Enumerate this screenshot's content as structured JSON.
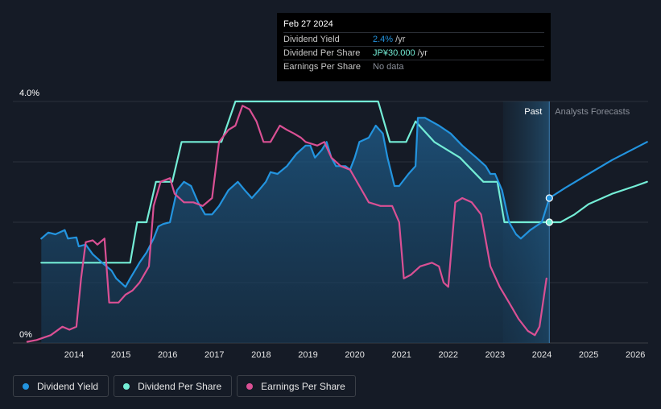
{
  "chart_data": {
    "type": "line",
    "y_axis": {
      "min": 0,
      "max": 4.0,
      "tick_labels": [
        "0%",
        "4.0%"
      ]
    },
    "x_axis": {
      "min": 2013.0,
      "max": 2026.25,
      "ticks": [
        2014,
        2015,
        2016,
        2017,
        2018,
        2019,
        2020,
        2021,
        2022,
        2023,
        2024,
        2025,
        2026
      ]
    },
    "region_labels": {
      "past": "Past",
      "forecast": "Analysts Forecasts"
    },
    "past_region": {
      "start": 2023.17,
      "end": 2024.16
    },
    "series": [
      {
        "name": "Dividend Yield",
        "color": "#2394df",
        "area": true,
        "points": [
          [
            2013.3,
            1.73
          ],
          [
            2013.45,
            1.83
          ],
          [
            2013.6,
            1.8
          ],
          [
            2013.8,
            1.87
          ],
          [
            2013.87,
            1.73
          ],
          [
            2014.05,
            1.75
          ],
          [
            2014.1,
            1.6
          ],
          [
            2014.25,
            1.63
          ],
          [
            2014.4,
            1.47
          ],
          [
            2014.6,
            1.33
          ],
          [
            2014.8,
            1.2
          ],
          [
            2014.9,
            1.07
          ],
          [
            2015.1,
            0.93
          ],
          [
            2015.2,
            1.07
          ],
          [
            2015.4,
            1.33
          ],
          [
            2015.55,
            1.5
          ],
          [
            2015.7,
            1.73
          ],
          [
            2015.8,
            1.93
          ],
          [
            2015.9,
            1.97
          ],
          [
            2016.05,
            2.0
          ],
          [
            2016.2,
            2.53
          ],
          [
            2016.35,
            2.67
          ],
          [
            2016.5,
            2.6
          ],
          [
            2016.65,
            2.33
          ],
          [
            2016.8,
            2.13
          ],
          [
            2016.95,
            2.13
          ],
          [
            2017.1,
            2.27
          ],
          [
            2017.3,
            2.53
          ],
          [
            2017.5,
            2.67
          ],
          [
            2017.65,
            2.53
          ],
          [
            2017.8,
            2.4
          ],
          [
            2017.95,
            2.53
          ],
          [
            2018.1,
            2.67
          ],
          [
            2018.2,
            2.83
          ],
          [
            2018.35,
            2.8
          ],
          [
            2018.55,
            2.93
          ],
          [
            2018.75,
            3.13
          ],
          [
            2018.95,
            3.27
          ],
          [
            2019.05,
            3.27
          ],
          [
            2019.15,
            3.07
          ],
          [
            2019.3,
            3.2
          ],
          [
            2019.4,
            3.33
          ],
          [
            2019.5,
            3.07
          ],
          [
            2019.6,
            2.93
          ],
          [
            2019.8,
            2.93
          ],
          [
            2019.9,
            2.87
          ],
          [
            2020.0,
            3.07
          ],
          [
            2020.1,
            3.33
          ],
          [
            2020.3,
            3.4
          ],
          [
            2020.45,
            3.6
          ],
          [
            2020.6,
            3.47
          ],
          [
            2020.7,
            3.07
          ],
          [
            2020.85,
            2.6
          ],
          [
            2020.95,
            2.6
          ],
          [
            2021.15,
            2.8
          ],
          [
            2021.3,
            2.93
          ],
          [
            2021.35,
            3.73
          ],
          [
            2021.5,
            3.73
          ],
          [
            2021.8,
            3.6
          ],
          [
            2022.05,
            3.47
          ],
          [
            2022.3,
            3.27
          ],
          [
            2022.6,
            3.07
          ],
          [
            2022.8,
            2.93
          ],
          [
            2022.9,
            2.8
          ],
          [
            2023.0,
            2.8
          ],
          [
            2023.15,
            2.53
          ],
          [
            2023.3,
            2.0
          ],
          [
            2023.45,
            1.8
          ],
          [
            2023.55,
            1.73
          ],
          [
            2023.75,
            1.87
          ],
          [
            2024.0,
            2.0
          ],
          [
            2024.16,
            2.4
          ]
        ]
      },
      {
        "name": "Dividend Per Share",
        "color": "#74edd6",
        "points": [
          [
            2013.3,
            1.33
          ],
          [
            2015.2,
            1.33
          ],
          [
            2015.35,
            2.0
          ],
          [
            2015.55,
            2.0
          ],
          [
            2015.75,
            2.67
          ],
          [
            2016.1,
            2.67
          ],
          [
            2016.3,
            3.33
          ],
          [
            2017.15,
            3.33
          ],
          [
            2017.45,
            4.0
          ],
          [
            2020.5,
            4.0
          ],
          [
            2020.75,
            3.33
          ],
          [
            2021.1,
            3.33
          ],
          [
            2021.3,
            3.67
          ],
          [
            2021.7,
            3.33
          ],
          [
            2022.25,
            3.07
          ],
          [
            2022.75,
            2.67
          ],
          [
            2023.05,
            2.67
          ],
          [
            2023.2,
            2.0
          ],
          [
            2024.16,
            2.0
          ]
        ]
      },
      {
        "name": "Earnings Per Share",
        "color": "#da5094",
        "points": [
          [
            2013.0,
            0.02
          ],
          [
            2013.2,
            0.05
          ],
          [
            2013.5,
            0.13
          ],
          [
            2013.75,
            0.27
          ],
          [
            2013.9,
            0.22
          ],
          [
            2014.05,
            0.27
          ],
          [
            2014.15,
            1.07
          ],
          [
            2014.25,
            1.67
          ],
          [
            2014.4,
            1.7
          ],
          [
            2014.5,
            1.63
          ],
          [
            2014.65,
            1.73
          ],
          [
            2014.75,
            0.67
          ],
          [
            2014.95,
            0.67
          ],
          [
            2015.1,
            0.8
          ],
          [
            2015.25,
            0.87
          ],
          [
            2015.4,
            1.0
          ],
          [
            2015.6,
            1.27
          ],
          [
            2015.7,
            2.27
          ],
          [
            2015.85,
            2.67
          ],
          [
            2016.05,
            2.73
          ],
          [
            2016.15,
            2.47
          ],
          [
            2016.35,
            2.33
          ],
          [
            2016.55,
            2.33
          ],
          [
            2016.75,
            2.27
          ],
          [
            2016.95,
            2.4
          ],
          [
            2017.1,
            3.33
          ],
          [
            2017.3,
            3.53
          ],
          [
            2017.45,
            3.6
          ],
          [
            2017.6,
            3.93
          ],
          [
            2017.75,
            3.87
          ],
          [
            2017.9,
            3.67
          ],
          [
            2018.05,
            3.33
          ],
          [
            2018.2,
            3.33
          ],
          [
            2018.4,
            3.6
          ],
          [
            2018.55,
            3.53
          ],
          [
            2018.7,
            3.47
          ],
          [
            2018.85,
            3.4
          ],
          [
            2018.95,
            3.33
          ],
          [
            2019.2,
            3.27
          ],
          [
            2019.35,
            3.33
          ],
          [
            2019.5,
            3.07
          ],
          [
            2019.7,
            2.93
          ],
          [
            2019.9,
            2.87
          ],
          [
            2020.1,
            2.6
          ],
          [
            2020.3,
            2.33
          ],
          [
            2020.55,
            2.27
          ],
          [
            2020.8,
            2.27
          ],
          [
            2020.95,
            2.0
          ],
          [
            2021.05,
            1.07
          ],
          [
            2021.2,
            1.13
          ],
          [
            2021.4,
            1.27
          ],
          [
            2021.65,
            1.33
          ],
          [
            2021.8,
            1.27
          ],
          [
            2021.9,
            1.0
          ],
          [
            2022.0,
            0.93
          ],
          [
            2022.15,
            2.33
          ],
          [
            2022.3,
            2.4
          ],
          [
            2022.5,
            2.33
          ],
          [
            2022.7,
            2.13
          ],
          [
            2022.9,
            1.27
          ],
          [
            2023.1,
            0.93
          ],
          [
            2023.3,
            0.67
          ],
          [
            2023.5,
            0.4
          ],
          [
            2023.7,
            0.2
          ],
          [
            2023.85,
            0.13
          ],
          [
            2023.95,
            0.27
          ],
          [
            2024.1,
            1.07
          ]
        ]
      }
    ],
    "forecast_series": [
      {
        "name": "Dividend Yield",
        "color": "#2394df",
        "points": [
          [
            2024.16,
            2.4
          ],
          [
            2024.5,
            2.57
          ],
          [
            2025.0,
            2.8
          ],
          [
            2025.5,
            3.03
          ],
          [
            2026.0,
            3.23
          ],
          [
            2026.25,
            3.33
          ]
        ]
      },
      {
        "name": "Dividend Per Share",
        "color": "#74edd6",
        "points": [
          [
            2024.16,
            2.0
          ],
          [
            2024.4,
            2.0
          ],
          [
            2024.7,
            2.13
          ],
          [
            2025.0,
            2.3
          ],
          [
            2025.5,
            2.47
          ],
          [
            2026.0,
            2.6
          ],
          [
            2026.25,
            2.67
          ]
        ]
      }
    ],
    "highlight": {
      "x": 2024.16,
      "values": [
        2.4,
        2.0
      ]
    }
  },
  "tooltip": {
    "date": "Feb 27 2024",
    "rows": [
      {
        "label": "Dividend Yield",
        "value": "2.4%",
        "unit": " /yr",
        "color": "#2394df"
      },
      {
        "label": "Dividend Per Share",
        "value": "JP¥30.000",
        "unit": " /yr",
        "color": "#74edd6"
      },
      {
        "label": "Earnings Per Share",
        "value": "No data",
        "unit": "",
        "color": "#8a8f99"
      }
    ]
  },
  "legend": [
    {
      "label": "Dividend Yield",
      "color": "#2394df"
    },
    {
      "label": "Dividend Per Share",
      "color": "#74edd6"
    },
    {
      "label": "Earnings Per Share",
      "color": "#da5094"
    }
  ]
}
